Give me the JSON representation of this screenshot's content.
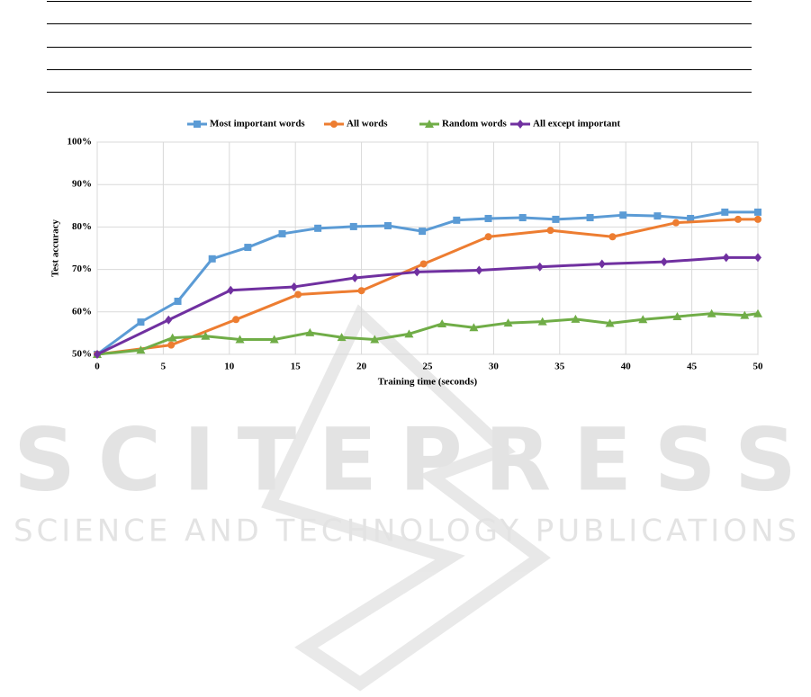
{
  "chart_data": {
    "type": "line",
    "xlabel": "Training time (seconds)",
    "ylabel": "Test accuracy",
    "xlim": [
      0,
      50
    ],
    "xticks": [
      0,
      5,
      10,
      15,
      20,
      25,
      30,
      35,
      40,
      45,
      50
    ],
    "ylim": [
      50,
      100
    ],
    "yticks": [
      {
        "value": 50,
        "label": "50%"
      },
      {
        "value": 60,
        "label": "60%"
      },
      {
        "value": 70,
        "label": "70%"
      },
      {
        "value": 80,
        "label": "80%"
      },
      {
        "value": 90,
        "label": "90%"
      },
      {
        "value": 100,
        "label": "100%"
      }
    ],
    "grid": true,
    "legend": "top",
    "series": [
      {
        "name": "Most important words",
        "color": "#5b9bd5",
        "marker": "square",
        "x": [
          0,
          3.3,
          6.1,
          8.7,
          11.4,
          14,
          16.7,
          19.4,
          22,
          24.6,
          27.2,
          29.6,
          32.2,
          34.7,
          37.3,
          39.8,
          42.4,
          44.9,
          47.5,
          50
        ],
        "values": [
          50,
          57.6,
          62.5,
          72.5,
          75.2,
          78.4,
          79.7,
          80.1,
          80.3,
          79,
          81.6,
          82,
          82.2,
          81.8,
          82.2,
          82.8,
          82.6,
          82,
          83.5,
          83.5
        ]
      },
      {
        "name": "All words",
        "color": "#ed7d31",
        "marker": "circle",
        "x": [
          0,
          5.6,
          10.5,
          15.2,
          20,
          24.7,
          29.6,
          34.3,
          39,
          43.8,
          48.5,
          50
        ],
        "values": [
          50,
          52.2,
          58.2,
          64.1,
          65,
          71.3,
          77.7,
          79.2,
          77.7,
          81,
          81.8,
          81.8
        ]
      },
      {
        "name": "Random words",
        "color": "#70ad47",
        "marker": "triangle",
        "x": [
          0,
          3.3,
          5.7,
          8.2,
          10.8,
          13.4,
          16.1,
          18.5,
          21,
          23.6,
          26.1,
          28.5,
          31.1,
          33.7,
          36.2,
          38.8,
          41.3,
          43.9,
          46.5,
          49,
          50
        ],
        "values": [
          50,
          51,
          53.9,
          54.3,
          53.5,
          53.5,
          55.1,
          54,
          53.5,
          54.8,
          57.2,
          56.3,
          57.4,
          57.7,
          58.3,
          57.3,
          58.2,
          58.9,
          59.6,
          59.2,
          59.6
        ]
      },
      {
        "name": "All except important",
        "color": "#7030a0",
        "marker": "diamond",
        "x": [
          0,
          5.4,
          10.1,
          14.9,
          19.5,
          24.2,
          28.9,
          33.5,
          38.2,
          42.9,
          47.6,
          50
        ],
        "values": [
          50,
          58.1,
          65.1,
          65.9,
          68,
          69.4,
          69.8,
          70.6,
          71.3,
          71.8,
          72.8,
          72.8
        ]
      }
    ]
  },
  "watermark": {
    "title": "SCITEPRESS",
    "subtitle": "SCIENCE AND TECHNOLOGY PUBLICATIONS"
  }
}
